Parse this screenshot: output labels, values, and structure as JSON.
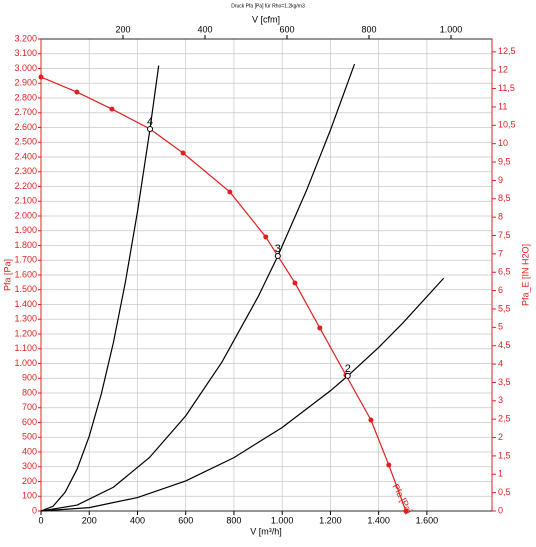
{
  "chart_data": {
    "type": "line",
    "title": "Druck Pfa [Pa] für Rho=1.2kg/m3",
    "x_label": "V [m³/h]",
    "x2_label": "V [cfm]",
    "y_label": "Pfa [Pa]",
    "y2_label": "Pfa_E [IN H2O]",
    "xlim": [
      0,
      1870
    ],
    "xticks": [
      0,
      200,
      400,
      600,
      800,
      {
        "value": 1000,
        "label": "1.000"
      },
      {
        "value": 1200,
        "label": "1.200"
      },
      {
        "value": 1400,
        "label": "1.400"
      },
      {
        "value": 1600,
        "label": "1.600"
      }
    ],
    "x2lim": [
      0,
      1100
    ],
    "x2ticks": [
      200,
      400,
      600,
      800,
      {
        "value": 1000,
        "label": "1.000"
      }
    ],
    "ylim": [
      0,
      3200
    ],
    "yticks": [
      0,
      100,
      200,
      300,
      400,
      500,
      600,
      700,
      800,
      900,
      {
        "value": 1000,
        "label": "1.000"
      },
      {
        "value": 1100,
        "label": "1.100"
      },
      {
        "value": 1200,
        "label": "1.200"
      },
      {
        "value": 1300,
        "label": "1.300"
      },
      {
        "value": 1400,
        "label": "1.400"
      },
      {
        "value": 1500,
        "label": "1.500"
      },
      {
        "value": 1600,
        "label": "1.600"
      },
      {
        "value": 1700,
        "label": "1.700"
      },
      {
        "value": 1800,
        "label": "1.800"
      },
      {
        "value": 1900,
        "label": "1.900"
      },
      {
        "value": 2000,
        "label": "2.000"
      },
      {
        "value": 2100,
        "label": "2.100"
      },
      {
        "value": 2200,
        "label": "2.200"
      },
      {
        "value": 2300,
        "label": "2.300"
      },
      {
        "value": 2400,
        "label": "2.400"
      },
      {
        "value": 2500,
        "label": "2.500"
      },
      {
        "value": 2600,
        "label": "2.600"
      },
      {
        "value": 2700,
        "label": "2.700"
      },
      {
        "value": 2800,
        "label": "2.800"
      },
      {
        "value": 2900,
        "label": "2.900"
      },
      {
        "value": 3000,
        "label": "3.000"
      },
      {
        "value": 3100,
        "label": "3.100"
      },
      {
        "value": 3200,
        "label": "3.200"
      }
    ],
    "y2lim": [
      0,
      12.85
    ],
    "y2ticks": [
      0,
      {
        "value": 0.5,
        "label": "0,5"
      },
      1,
      {
        "value": 1.5,
        "label": "1,5"
      },
      2,
      {
        "value": 2.5,
        "label": "2,5"
      },
      3,
      {
        "value": 3.5,
        "label": "3,5"
      },
      4,
      {
        "value": 4.5,
        "label": "4,5"
      },
      5,
      {
        "value": 5.5,
        "label": "5,5"
      },
      6,
      {
        "value": 6.5,
        "label": "6,5"
      },
      7,
      {
        "value": 7.5,
        "label": "7,5"
      },
      8,
      {
        "value": 8.5,
        "label": "8,5"
      },
      9,
      {
        "value": 9.5,
        "label": "9,5"
      },
      10,
      {
        "value": 10.5,
        "label": "10,5"
      },
      11,
      {
        "value": 11.5,
        "label": "11,5"
      },
      12,
      {
        "value": 12.5,
        "label": "12,5"
      }
    ],
    "grid": true,
    "series": [
      {
        "name": "Pfa [Pa]",
        "color": "#e02020",
        "markers": true,
        "x": [
          0,
          149,
          294,
          452,
          589,
          783,
          932,
          982,
          1053,
          1156,
          1264,
          1368,
          1442,
          1513
        ],
        "values": [
          2942,
          2840,
          2725,
          2590,
          2427,
          2163,
          1858,
          1729,
          1546,
          1241,
          922,
          617,
          312,
          0
        ]
      },
      {
        "color": "#000000",
        "markers": false,
        "x": [
          0,
          50,
          100,
          150,
          200,
          250,
          300,
          350,
          400,
          450,
          488
        ],
        "values": [
          0,
          32,
          127,
          285,
          507,
          793,
          1141,
          1553,
          2029,
          2568,
          3020
        ]
      },
      {
        "color": "#000000",
        "markers": false,
        "x": [
          0,
          150,
          300,
          450,
          600,
          750,
          900,
          982,
          1100,
          1200,
          1300
        ],
        "values": [
          0,
          40,
          161,
          363,
          645,
          1009,
          1452,
          1729,
          2170,
          2582,
          3030
        ]
      },
      {
        "color": "#000000",
        "markers": false,
        "x": [
          0,
          200,
          400,
          600,
          800,
          1000,
          1200,
          1272,
          1400,
          1500,
          1670
        ],
        "values": [
          0,
          23,
          91,
          204,
          362,
          566,
          815,
          916,
          1109,
          1274,
          1579
        ]
      }
    ],
    "annotations": [
      {
        "text": "4",
        "x": 452,
        "y": 2590
      },
      {
        "text": "3",
        "x": 982,
        "y": 1729
      },
      {
        "text": "2",
        "x": 1272,
        "y": 916
      }
    ]
  }
}
